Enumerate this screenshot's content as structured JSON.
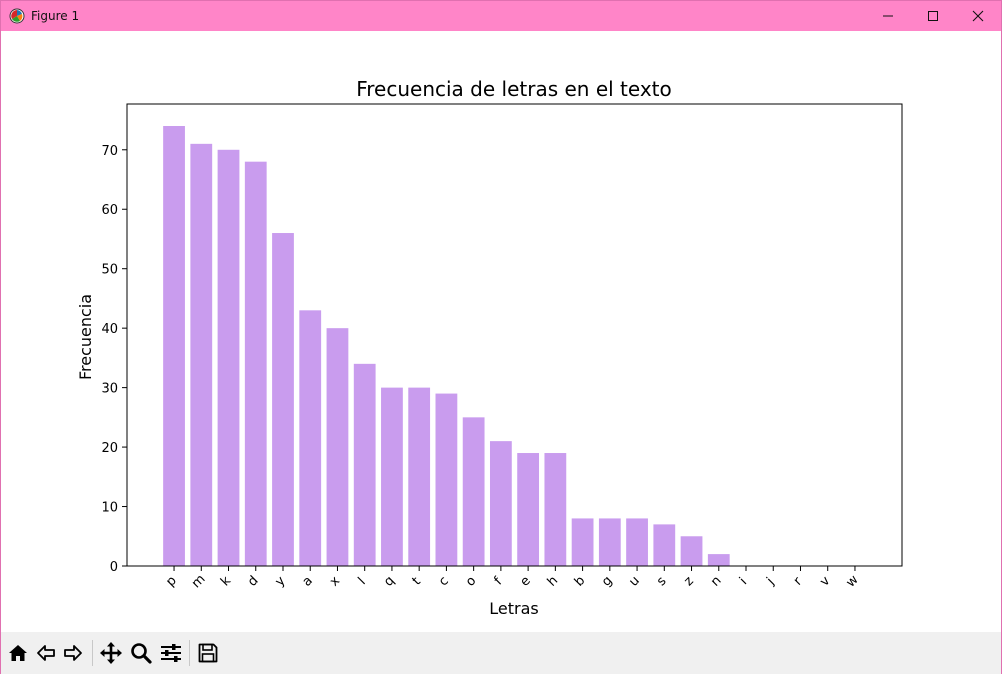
{
  "window": {
    "title": "Figure 1",
    "icons": [
      "matplotlib-icon",
      "minimize-icon",
      "maximize-icon",
      "close-icon"
    ]
  },
  "toolbar": {
    "tools": [
      "home-icon",
      "back-icon",
      "forward-icon",
      "pan-icon",
      "zoom-icon",
      "configure-subplots-icon",
      "save-icon"
    ]
  },
  "colors": {
    "titlebar": "#ff85c8",
    "bar": "#c99cee",
    "toolbar": "#f0f0f0"
  },
  "chart_data": {
    "type": "bar",
    "title": "Frecuencia de letras en el texto",
    "xlabel": "Letras",
    "ylabel": "Frecuencia",
    "categories": [
      "p",
      "m",
      "k",
      "d",
      "y",
      "a",
      "x",
      "l",
      "q",
      "t",
      "c",
      "o",
      "f",
      "e",
      "h",
      "b",
      "g",
      "u",
      "s",
      "z",
      "n",
      "i",
      "j",
      "r",
      "v",
      "w"
    ],
    "values": [
      74,
      71,
      70,
      68,
      56,
      43,
      40,
      34,
      30,
      30,
      29,
      25,
      21,
      19,
      19,
      8,
      8,
      8,
      7,
      5,
      2,
      0,
      0,
      0,
      0,
      0
    ],
    "ylim": [
      0,
      77.7
    ],
    "yticks": [
      0,
      10,
      20,
      30,
      40,
      50,
      60,
      70
    ],
    "xtick_rotation": 45,
    "grid": false,
    "legend": false
  }
}
